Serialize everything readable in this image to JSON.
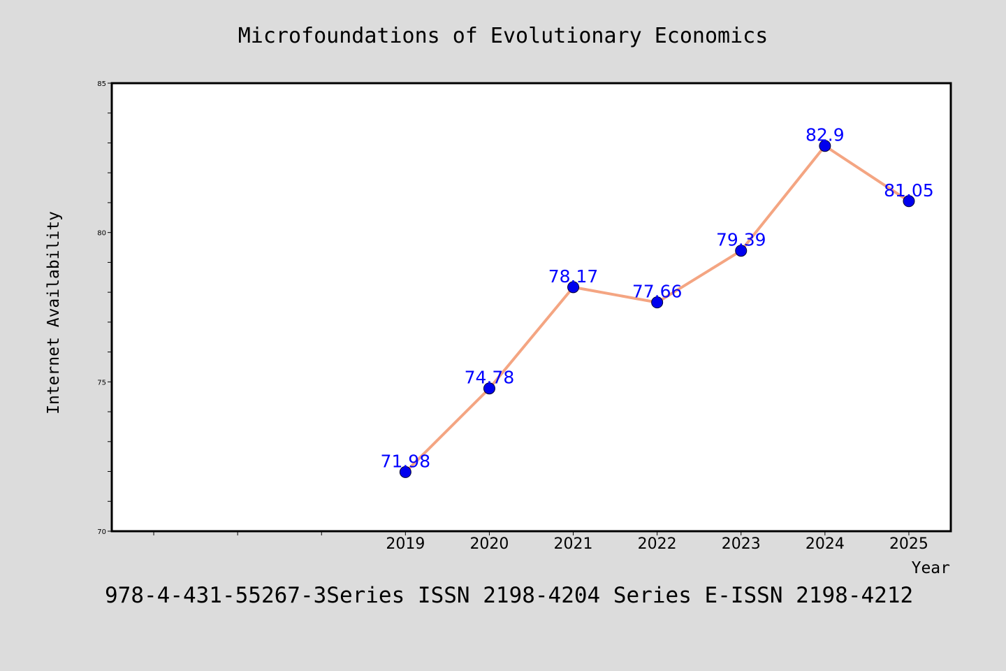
{
  "title": "Microfoundations of Evolutionary Economics",
  "footer": "978-4-431-55267-3Series ISSN 2198-4204 Series E-ISSN 2198-4212",
  "colors": {
    "background": "#dcdcdc",
    "plot_background": "#ffffff",
    "line": "#f4a582",
    "marker": "#0000ee",
    "data_label": "#0000ff"
  },
  "chart_data": {
    "type": "line",
    "title": "Microfoundations of Evolutionary Economics",
    "xlabel": "Year",
    "ylabel": "Internet Availability",
    "x_categories": [
      "",
      "",
      "",
      "2019",
      "2020",
      "2021",
      "2022",
      "2023",
      "2024",
      "2025"
    ],
    "xlim": [
      -0.5,
      9.5
    ],
    "ylim": [
      70,
      85
    ],
    "y_ticks": [
      70,
      75,
      80,
      85
    ],
    "y_minor_step": 1,
    "grid": false,
    "series": [
      {
        "x": [
          "2019",
          "2020",
          "2021",
          "2022",
          "2023",
          "2024",
          "2025"
        ],
        "values": [
          71.98,
          74.78,
          78.17,
          77.66,
          79.39,
          82.9,
          81.05
        ],
        "labels": [
          "71.98",
          "74.78",
          "78.17",
          "77.66",
          "79.39",
          "82.9",
          "81.05"
        ]
      }
    ]
  }
}
